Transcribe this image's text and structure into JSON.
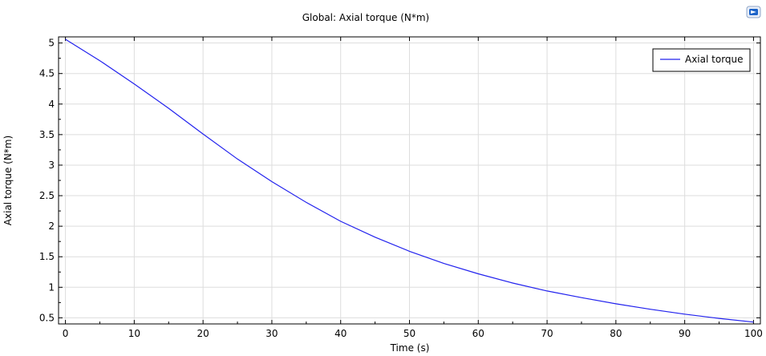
{
  "title": "Global: Axial torque (N*m)",
  "icons": {
    "corner_icon": "comsol-logo-icon"
  },
  "chart_data": {
    "type": "line",
    "title": "Global: Axial torque (N*m)",
    "xlabel": "Time (s)",
    "ylabel": "Axial torque (N*m)",
    "xlim": [
      -1,
      101
    ],
    "ylim": [
      0.4,
      5.1
    ],
    "xticks": [
      0,
      10,
      20,
      30,
      40,
      50,
      60,
      70,
      80,
      90,
      100
    ],
    "xtick_labels": [
      "0",
      "10",
      "20",
      "30",
      "40",
      "50",
      "60",
      "70",
      "80",
      "90",
      "100"
    ],
    "yticks": [
      0.5,
      1,
      1.5,
      2,
      2.5,
      3,
      3.5,
      4,
      4.5,
      5
    ],
    "ytick_labels": [
      "0.5",
      "1",
      "1.5",
      "2",
      "2.5",
      "3",
      "3.5",
      "4",
      "4.5",
      "5"
    ],
    "grid": true,
    "legend_position": "top-right",
    "series": [
      {
        "name": "Axial torque",
        "color": "#2222ee",
        "x": [
          0,
          5,
          10,
          15,
          20,
          25,
          30,
          35,
          40,
          45,
          50,
          55,
          60,
          65,
          70,
          75,
          80,
          85,
          90,
          95,
          100
        ],
        "y": [
          5.06,
          4.71,
          4.33,
          3.93,
          3.51,
          3.1,
          2.73,
          2.39,
          2.08,
          1.82,
          1.59,
          1.39,
          1.22,
          1.07,
          0.94,
          0.83,
          0.73,
          0.64,
          0.56,
          0.49,
          0.43
        ]
      }
    ]
  }
}
